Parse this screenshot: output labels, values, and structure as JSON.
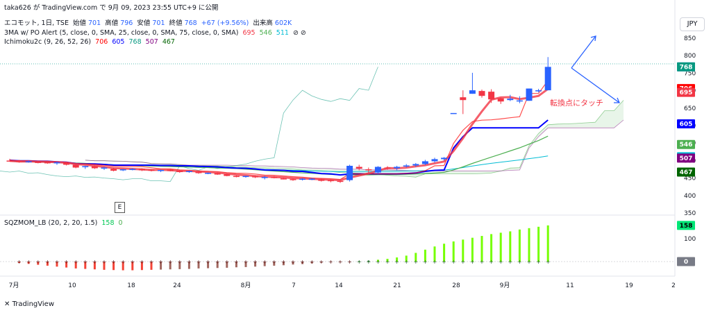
{
  "attribution": "taka626 が TradingView.com で 9月 09, 2023 23:55 UTC+9 に公開",
  "symbol_line": {
    "name": "エコモット, 1日, TSE",
    "open_label": "始値",
    "open": "701",
    "high_label": "高値",
    "high": "796",
    "low_label": "安値",
    "low": "701",
    "close_label": "終値",
    "close": "768",
    "change": "+67 (+9.56%)",
    "volume_label": "出来高",
    "volume": "602K"
  },
  "indicators": {
    "ma": {
      "label": "3MA w/ PO Alert (5, close, 0, SMA, 25, close, 0, SMA, 75, close, 0, SMA)",
      "v1": "695",
      "v2": "546",
      "v3": "511",
      "icons": "⊘ ⊘"
    },
    "ichimoku": {
      "label": "Ichimoku2c (9, 26, 52, 26)",
      "v1": "706",
      "v2": "605",
      "v3": "768",
      "v4": "507",
      "v5": "467"
    },
    "sqz": {
      "label": "SQZMOM_LB (20, 2, 20, 1.5)",
      "v1": "158",
      "v2": "0"
    }
  },
  "currency_button": "JPY",
  "event_marker": "E",
  "annotation": "転換点にタッチ",
  "price_axis": [
    "850",
    "800",
    "750",
    "700",
    "650",
    "600",
    "550",
    "500",
    "450",
    "400",
    "350"
  ],
  "price_tags": [
    {
      "value": "768",
      "color": "#2962ff"
    },
    {
      "value": "768",
      "color": "#089981"
    },
    {
      "value": "706",
      "color": "#ff0000"
    },
    {
      "value": "695",
      "color": "#f23645"
    },
    {
      "value": "605",
      "color": "#0000ff"
    },
    {
      "value": "546",
      "color": "#4caf50"
    },
    {
      "value": "511",
      "color": "#00bcd4"
    },
    {
      "value": "507",
      "color": "#800080"
    },
    {
      "value": "467",
      "color": "#006400"
    }
  ],
  "osc_axis": [
    "100"
  ],
  "osc_tags": [
    {
      "value": "158",
      "color": "#00e676"
    },
    {
      "value": "0",
      "color": "#787b86"
    }
  ],
  "time_axis": [
    "7月",
    "10",
    "18",
    "24",
    "8月",
    "7",
    "14",
    "21",
    "28",
    "9月",
    "11",
    "19",
    "2"
  ],
  "footer": "TradingView",
  "chart_data": {
    "type": "candlestick",
    "candles": [
      {
        "o": 500,
        "h": 505,
        "l": 497,
        "c": 499
      },
      {
        "o": 499,
        "h": 502,
        "l": 494,
        "c": 496
      },
      {
        "o": 497,
        "h": 500,
        "l": 494,
        "c": 498
      },
      {
        "o": 496,
        "h": 499,
        "l": 492,
        "c": 494
      },
      {
        "o": 495,
        "h": 498,
        "l": 491,
        "c": 493
      },
      {
        "o": 492,
        "h": 497,
        "l": 488,
        "c": 495
      },
      {
        "o": 494,
        "h": 496,
        "l": 486,
        "c": 488
      },
      {
        "o": 488,
        "h": 490,
        "l": 478,
        "c": 480
      },
      {
        "o": 482,
        "h": 485,
        "l": 476,
        "c": 484
      },
      {
        "o": 484,
        "h": 486,
        "l": 476,
        "c": 478
      },
      {
        "o": 478,
        "h": 482,
        "l": 473,
        "c": 480
      },
      {
        "o": 476,
        "h": 479,
        "l": 469,
        "c": 471
      },
      {
        "o": 472,
        "h": 476,
        "l": 470,
        "c": 475
      },
      {
        "o": 475,
        "h": 478,
        "l": 472,
        "c": 476
      },
      {
        "o": 476,
        "h": 478,
        "l": 470,
        "c": 472
      },
      {
        "o": 474,
        "h": 476,
        "l": 469,
        "c": 471
      },
      {
        "o": 471,
        "h": 474,
        "l": 467,
        "c": 473
      },
      {
        "o": 474,
        "h": 476,
        "l": 469,
        "c": 470
      },
      {
        "o": 471,
        "h": 473,
        "l": 465,
        "c": 467
      },
      {
        "o": 468,
        "h": 471,
        "l": 465,
        "c": 470
      },
      {
        "o": 468,
        "h": 470,
        "l": 462,
        "c": 464
      },
      {
        "o": 464,
        "h": 466,
        "l": 461,
        "c": 465
      },
      {
        "o": 464,
        "h": 466,
        "l": 459,
        "c": 460
      },
      {
        "o": 461,
        "h": 463,
        "l": 455,
        "c": 456
      },
      {
        "o": 456,
        "h": 458,
        "l": 452,
        "c": 454
      },
      {
        "o": 455,
        "h": 457,
        "l": 451,
        "c": 456
      },
      {
        "o": 455,
        "h": 458,
        "l": 450,
        "c": 452
      },
      {
        "o": 452,
        "h": 456,
        "l": 446,
        "c": 453
      },
      {
        "o": 453,
        "h": 456,
        "l": 449,
        "c": 450
      },
      {
        "o": 449,
        "h": 451,
        "l": 446,
        "c": 448
      },
      {
        "o": 447,
        "h": 449,
        "l": 442,
        "c": 445
      },
      {
        "o": 447,
        "h": 450,
        "l": 443,
        "c": 448
      },
      {
        "o": 446,
        "h": 450,
        "l": 444,
        "c": 448
      },
      {
        "o": 446,
        "h": 448,
        "l": 440,
        "c": 442
      },
      {
        "o": 444,
        "h": 446,
        "l": 438,
        "c": 442
      },
      {
        "o": 442,
        "h": 444,
        "l": 436,
        "c": 440
      },
      {
        "o": 444,
        "h": 488,
        "l": 440,
        "c": 485
      },
      {
        "o": 482,
        "h": 488,
        "l": 472,
        "c": 477
      },
      {
        "o": 475,
        "h": 480,
        "l": 465,
        "c": 472
      },
      {
        "o": 466,
        "h": 484,
        "l": 462,
        "c": 482
      },
      {
        "o": 480,
        "h": 484,
        "l": 474,
        "c": 477
      },
      {
        "o": 478,
        "h": 485,
        "l": 472,
        "c": 482
      },
      {
        "o": 483,
        "h": 490,
        "l": 480,
        "c": 486
      },
      {
        "o": 486,
        "h": 493,
        "l": 482,
        "c": 490
      },
      {
        "o": 490,
        "h": 502,
        "l": 487,
        "c": 498
      },
      {
        "o": 498,
        "h": 508,
        "l": 494,
        "c": 504
      },
      {
        "o": 504,
        "h": 510,
        "l": 500,
        "c": 508
      },
      {
        "o": 636,
        "h": 636,
        "l": 636,
        "c": 636
      },
      {
        "o": 681,
        "h": 701,
        "l": 633,
        "c": 673
      },
      {
        "o": 691,
        "h": 751,
        "l": 691,
        "c": 701
      },
      {
        "o": 699,
        "h": 703,
        "l": 680,
        "c": 685
      },
      {
        "o": 697,
        "h": 704,
        "l": 665,
        "c": 675
      },
      {
        "o": 678,
        "h": 680,
        "l": 662,
        "c": 669
      },
      {
        "o": 673,
        "h": 688,
        "l": 670,
        "c": 677
      },
      {
        "o": 669,
        "h": 684,
        "l": 664,
        "c": 672
      },
      {
        "o": 671,
        "h": 706,
        "l": 671,
        "c": 706
      },
      {
        "o": 700,
        "h": 705,
        "l": 695,
        "c": 701
      },
      {
        "o": 701,
        "h": 796,
        "l": 701,
        "c": 768
      }
    ],
    "series": [
      {
        "name": "695",
        "color": "#f23645"
      },
      {
        "name": "546",
        "color": "#4caf50"
      },
      {
        "name": "511",
        "color": "#00bcd4"
      },
      {
        "name": "706",
        "color": "#ff0000"
      },
      {
        "name": "605",
        "color": "#0000ff"
      },
      {
        "name": "768",
        "color": "#089981"
      },
      {
        "name": "507",
        "color": "#800080"
      },
      {
        "name": "467",
        "color": "#006400"
      }
    ],
    "squeeze_momentum": [
      -6,
      -10,
      -14,
      -18,
      -22,
      -26,
      -30,
      -32,
      -34,
      -36,
      -37,
      -38,
      -38,
      -37,
      -36,
      -35,
      -34,
      -33,
      -32,
      -30,
      -29,
      -28,
      -27,
      -25,
      -24,
      -22,
      -20,
      -18,
      -16,
      -13,
      -11,
      -8,
      -5,
      -3,
      -2,
      -1,
      2,
      4,
      8,
      12,
      18,
      26,
      38,
      52,
      66,
      78,
      88,
      96,
      104,
      112,
      120,
      126,
      132,
      140,
      146,
      152,
      158
    ],
    "ylim": [
      350,
      860
    ]
  }
}
